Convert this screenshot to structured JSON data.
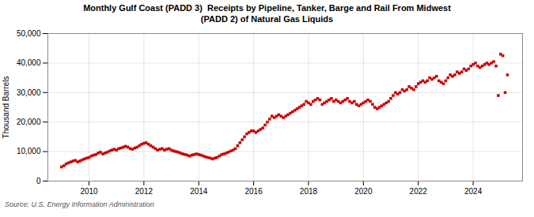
{
  "chart_data": {
    "type": "scatter",
    "title": "Monthly Gulf Coast (PADD 3)  Receipts by Pipeline, Tanker, Barge and Rail From Midwest\n(PADD 2) of Natural Gas Liquids",
    "ylabel": "Thousand Barrels",
    "source": "Source: U.S. Energy Information Administration",
    "color": "#cc0000",
    "marker": "square",
    "grid": true,
    "xlim": [
      2008.5,
      2025.8
    ],
    "xticks": [
      2010,
      2012,
      2014,
      2016,
      2018,
      2020,
      2022,
      2024
    ],
    "ylim": [
      0,
      50000
    ],
    "yticks": [
      0,
      {
        "value": 10000,
        "label": "10,000"
      },
      {
        "value": 20000,
        "label": "20,000"
      },
      {
        "value": 30000,
        "label": "30,000"
      },
      {
        "value": 40000,
        "label": "40,000"
      },
      {
        "value": 50000,
        "label": "50,000"
      }
    ],
    "x": [
      2009.0,
      2009.083,
      2009.167,
      2009.25,
      2009.333,
      2009.417,
      2009.5,
      2009.583,
      2009.667,
      2009.75,
      2009.833,
      2009.917,
      2010.0,
      2010.083,
      2010.167,
      2010.25,
      2010.333,
      2010.417,
      2010.5,
      2010.583,
      2010.667,
      2010.75,
      2010.833,
      2010.917,
      2011.0,
      2011.083,
      2011.167,
      2011.25,
      2011.333,
      2011.417,
      2011.5,
      2011.583,
      2011.667,
      2011.75,
      2011.833,
      2011.917,
      2012.0,
      2012.083,
      2012.167,
      2012.25,
      2012.333,
      2012.417,
      2012.5,
      2012.583,
      2012.667,
      2012.75,
      2012.833,
      2012.917,
      2013.0,
      2013.083,
      2013.167,
      2013.25,
      2013.333,
      2013.417,
      2013.5,
      2013.583,
      2013.667,
      2013.75,
      2013.833,
      2013.917,
      2014.0,
      2014.083,
      2014.167,
      2014.25,
      2014.333,
      2014.417,
      2014.5,
      2014.583,
      2014.667,
      2014.75,
      2014.833,
      2014.917,
      2015.0,
      2015.083,
      2015.167,
      2015.25,
      2015.333,
      2015.417,
      2015.5,
      2015.583,
      2015.667,
      2015.75,
      2015.833,
      2015.917,
      2016.0,
      2016.083,
      2016.167,
      2016.25,
      2016.333,
      2016.417,
      2016.5,
      2016.583,
      2016.667,
      2016.75,
      2016.833,
      2016.917,
      2017.0,
      2017.083,
      2017.167,
      2017.25,
      2017.333,
      2017.417,
      2017.5,
      2017.583,
      2017.667,
      2017.75,
      2017.833,
      2017.917,
      2018.0,
      2018.083,
      2018.167,
      2018.25,
      2018.333,
      2018.417,
      2018.5,
      2018.583,
      2018.667,
      2018.75,
      2018.833,
      2018.917,
      2019.0,
      2019.083,
      2019.167,
      2019.25,
      2019.333,
      2019.417,
      2019.5,
      2019.583,
      2019.667,
      2019.75,
      2019.833,
      2019.917,
      2020.0,
      2020.083,
      2020.167,
      2020.25,
      2020.333,
      2020.417,
      2020.5,
      2020.583,
      2020.667,
      2020.75,
      2020.833,
      2020.917,
      2021.0,
      2021.083,
      2021.167,
      2021.25,
      2021.333,
      2021.417,
      2021.5,
      2021.583,
      2021.667,
      2021.75,
      2021.833,
      2021.917,
      2022.0,
      2022.083,
      2022.167,
      2022.25,
      2022.333,
      2022.417,
      2022.5,
      2022.583,
      2022.667,
      2022.75,
      2022.833,
      2022.917,
      2023.0,
      2023.083,
      2023.167,
      2023.25,
      2023.333,
      2023.417,
      2023.5,
      2023.583,
      2023.667,
      2023.75,
      2023.833,
      2023.917,
      2024.0,
      2024.083,
      2024.167,
      2024.25,
      2024.333,
      2024.417,
      2024.5,
      2024.583,
      2024.667,
      2024.75,
      2024.833,
      2024.917,
      2025.0,
      2025.083,
      2025.167,
      2025.25
    ],
    "values": [
      4800,
      5200,
      5800,
      6200,
      6500,
      6800,
      7000,
      6500,
      6800,
      7200,
      7500,
      7800,
      8000,
      8500,
      8800,
      9000,
      9500,
      9800,
      9200,
      9500,
      9800,
      10200,
      10500,
      10800,
      10500,
      11000,
      11200,
      11500,
      11800,
      11500,
      11000,
      10800,
      11200,
      11500,
      12000,
      12500,
      12800,
      13000,
      12500,
      12000,
      11500,
      11000,
      10500,
      10800,
      11000,
      10500,
      10800,
      11000,
      10500,
      10200,
      10000,
      9800,
      9500,
      9200,
      9000,
      8800,
      8500,
      8800,
      9000,
      9200,
      9000,
      8800,
      8500,
      8200,
      8000,
      7800,
      7500,
      7800,
      8000,
      8500,
      9000,
      9200,
      9500,
      9800,
      10200,
      10500,
      11000,
      12000,
      13000,
      14000,
      15000,
      16000,
      16500,
      17000,
      17000,
      16500,
      17000,
      17500,
      18000,
      19000,
      20000,
      21000,
      22000,
      21500,
      22000,
      22500,
      22000,
      21500,
      22000,
      22500,
      23000,
      23500,
      24000,
      24500,
      25000,
      25500,
      26000,
      27000,
      26500,
      26000,
      27000,
      27500,
      28000,
      27500,
      26000,
      26500,
      27000,
      27500,
      28000,
      27000,
      27500,
      27000,
      26500,
      27000,
      27500,
      28000,
      27000,
      26500,
      27000,
      26000,
      25500,
      26000,
      26500,
      27000,
      27500,
      27000,
      26000,
      25000,
      24500,
      25000,
      25500,
      26000,
      26500,
      27000,
      28000,
      29000,
      30000,
      29500,
      30000,
      31000,
      30500,
      31000,
      32000,
      31500,
      31000,
      32000,
      33000,
      33500,
      34000,
      33500,
      34000,
      35000,
      34500,
      35000,
      35500,
      34000,
      33500,
      33000,
      34000,
      35000,
      36000,
      35500,
      36000,
      37000,
      36500,
      37000,
      38000,
      37500,
      38000,
      39000,
      39500,
      40000,
      39000,
      38500,
      39000,
      39500,
      40000,
      39500,
      40000,
      40500,
      39000,
      29000,
      43000,
      42500,
      30000,
      36000
    ]
  }
}
